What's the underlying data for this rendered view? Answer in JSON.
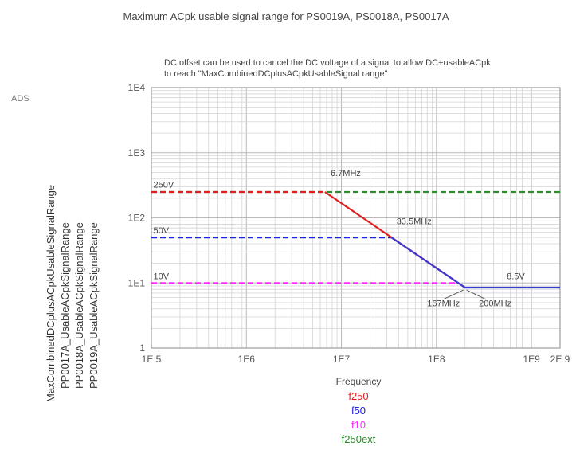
{
  "chart_data": {
    "type": "line",
    "title": "Maximum ACpk usable signal range for PS0019A, PS0018A, PS0017A",
    "subtitle_line1": "DC offset can be used to cancel the DC voltage of a signal to allow DC+usableACpk",
    "subtitle_line2": "to reach \"MaxCombinedDCplusACpkUsableSignal range\"",
    "corner_label": "ADS",
    "xlabel": "Frequency",
    "ylabels": [
      {
        "text": "MaxCombinedDCplusACpkUsableSignalRange",
        "color": "#3a9a3a"
      },
      {
        "text": "PP0017A_UsableACpkSignalRange",
        "color": "#e040e0"
      },
      {
        "text": "PP0018A_UsableACpkSignalRange",
        "color": "#3030d0"
      },
      {
        "text": "PP0019A_UsableACpkSignalRange",
        "color": "#e03030"
      }
    ],
    "x_scale": "log",
    "y_scale": "log",
    "xlim": [
      100000,
      2000000000
    ],
    "ylim": [
      1,
      10000
    ],
    "grid": true,
    "x_ticks": [
      {
        "value": 100000,
        "label": "1E 5"
      },
      {
        "value": 1000000,
        "label": "1E6"
      },
      {
        "value": 10000000,
        "label": "1E7"
      },
      {
        "value": 100000000,
        "label": "1E8"
      },
      {
        "value": 1000000000,
        "label": "1E9"
      },
      {
        "value": 2000000000,
        "label": "2E 9"
      }
    ],
    "y_ticks": [
      {
        "value": 1,
        "label": "1"
      },
      {
        "value": 10,
        "label": "1E1"
      },
      {
        "value": 100,
        "label": "1E2"
      },
      {
        "value": 1000,
        "label": "1E3"
      },
      {
        "value": 10000,
        "label": "1E4"
      }
    ],
    "series": [
      {
        "name": "f250ext",
        "color": "#2e8b2e",
        "dash": true,
        "x": [
          100000,
          2000000000
        ],
        "y": [
          250,
          250
        ]
      },
      {
        "name": "f50",
        "color": "#2020e0",
        "dash": true,
        "x": [
          100000,
          33500000
        ],
        "y": [
          50,
          50
        ]
      },
      {
        "name": "f10",
        "color": "#ff2cff",
        "dash": true,
        "x": [
          100000,
          167000000
        ],
        "y": [
          10,
          10
        ]
      },
      {
        "name": "f250",
        "color": "#e02020",
        "dash": true,
        "x": [
          100000,
          6700000
        ],
        "y": [
          250,
          250
        ]
      },
      {
        "name": "f250",
        "color": "#e02020",
        "dash": false,
        "x": [
          6700000,
          200000000
        ],
        "y": [
          250,
          8.5
        ]
      },
      {
        "name": "f50",
        "color": "#3a3ad0",
        "dash": false,
        "x": [
          33500000,
          200000000,
          2000000000
        ],
        "y": [
          50,
          8.5,
          8.5
        ]
      }
    ],
    "annotations": [
      {
        "text": "250V",
        "x": 105000,
        "y": 290
      },
      {
        "text": "50V",
        "x": 105000,
        "y": 58
      },
      {
        "text": "10V",
        "x": 105000,
        "y": 11.5
      },
      {
        "text": "6.7MHz",
        "x": 7700000,
        "y": 440
      },
      {
        "text": "33.5MHz",
        "x": 38000000,
        "y": 80
      },
      {
        "text": "8.5V",
        "x": 550000000,
        "y": 11.5
      },
      {
        "text": "167MHz",
        "x": 80000000,
        "y": 4.4
      },
      {
        "text": "200MHz",
        "x": 280000000,
        "y": 4.4
      }
    ],
    "legend": [
      {
        "text": "f250",
        "color": "#e02020"
      },
      {
        "text": "f50",
        "color": "#2020e0"
      },
      {
        "text": "f10",
        "color": "#ff2cff"
      },
      {
        "text": "f250ext",
        "color": "#2e8b2e"
      }
    ]
  }
}
